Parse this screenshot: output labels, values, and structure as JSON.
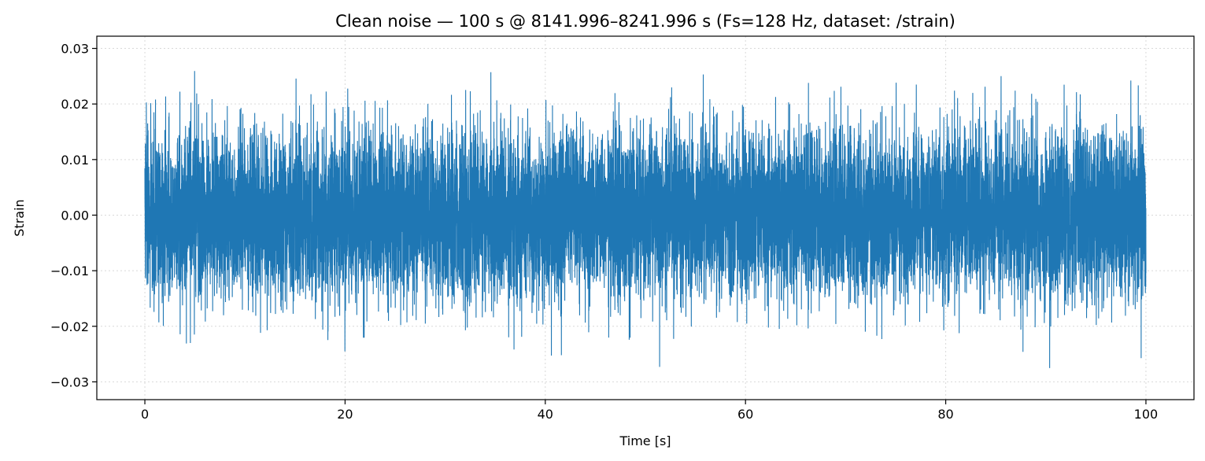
{
  "chart_data": {
    "type": "line",
    "title": "Clean noise — 100 s @ 8141.996–8241.996 s  (Fs=128 Hz, dataset: /strain)",
    "xlabel": "Time [s]",
    "ylabel": "Strain",
    "xlim": [
      -4.8,
      104.8
    ],
    "ylim": [
      -0.0332,
      0.0322
    ],
    "x_ticks": [
      0,
      20,
      40,
      60,
      80,
      100
    ],
    "x_tick_labels": [
      "0",
      "20",
      "40",
      "60",
      "80",
      "100"
    ],
    "y_ticks": [
      -0.03,
      -0.02,
      -0.01,
      0.0,
      0.01,
      0.02,
      0.03
    ],
    "y_tick_labels": [
      "−0.03",
      "−0.02",
      "−0.01",
      "0.00",
      "0.01",
      "0.02",
      "0.03"
    ],
    "grid": true,
    "legend": "none",
    "series": [
      {
        "color": "#1f77b4",
        "x_start": 0,
        "x_end": 100,
        "sample_rate_hz": 128,
        "mean": 0.0,
        "approx_std": 0.0075,
        "approx_min": -0.0332,
        "approx_max": 0.0322
      }
    ]
  }
}
